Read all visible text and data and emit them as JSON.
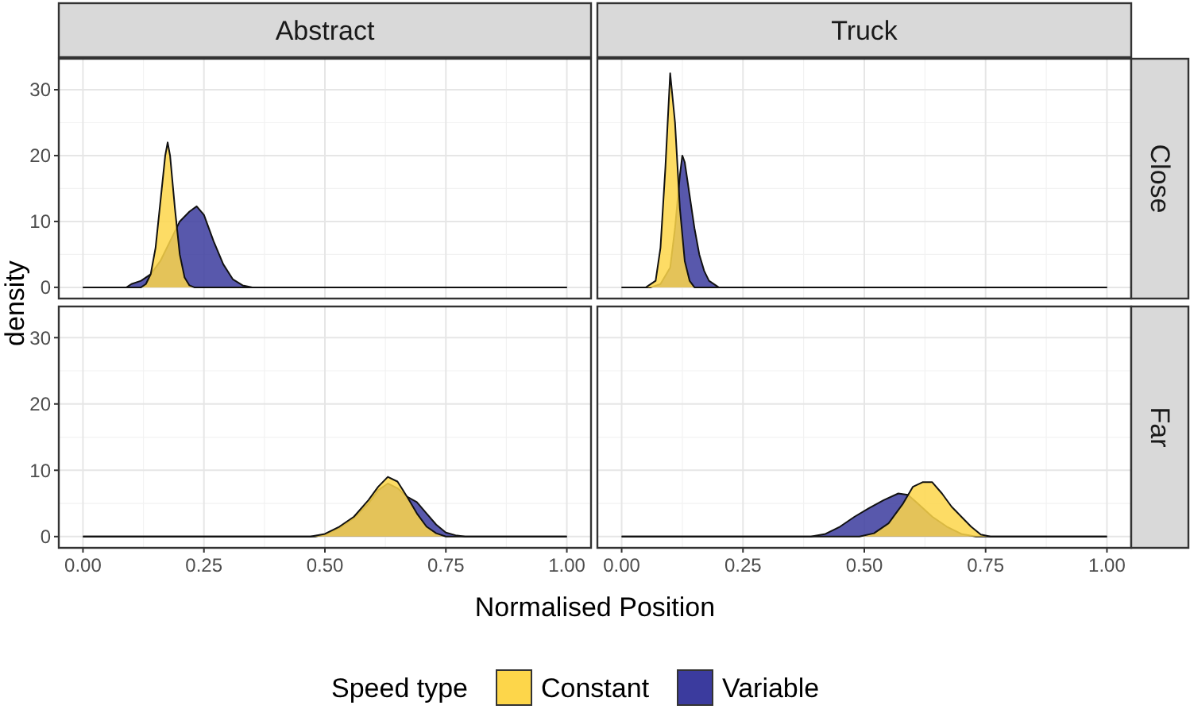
{
  "chart_data": [
    {
      "type": "area",
      "title": "Abstract",
      "ylabel": "density",
      "xlim": [
        -0.05,
        1.05
      ],
      "ylim": [
        -1.7,
        34.7
      ],
      "xticks": [
        0,
        0.25,
        0.5,
        0.75,
        1
      ],
      "yticks": [
        0,
        10,
        20,
        30
      ],
      "grid": true,
      "tick_labels": "y",
      "series": [
        {
          "color": "#3b3b9e",
          "x": [
            0,
            0.09,
            0.1,
            0.12,
            0.14,
            0.16,
            0.18,
            0.2,
            0.22,
            0.235,
            0.25,
            0.27,
            0.29,
            0.31,
            0.33,
            0.35,
            1
          ],
          "values": [
            0,
            0,
            0.5,
            1,
            2,
            4,
            7,
            10,
            11.5,
            12.3,
            11,
            7,
            3.5,
            1.2,
            0.3,
            0,
            0
          ]
        },
        {
          "color": "#fdd64a",
          "x": [
            0,
            0.12,
            0.13,
            0.14,
            0.15,
            0.16,
            0.17,
            0.175,
            0.18,
            0.19,
            0.2,
            0.21,
            0.22,
            0.23,
            1
          ],
          "values": [
            0,
            0,
            0.5,
            2,
            6,
            13,
            20,
            22,
            20,
            12,
            5,
            1.5,
            0.3,
            0,
            0
          ]
        }
      ]
    },
    {
      "type": "area",
      "title": "Truck",
      "y2label": "Close",
      "xlim": [
        -0.05,
        1.05
      ],
      "ylim": [
        -1.7,
        34.7
      ],
      "xticks": [
        0,
        0.25,
        0.5,
        0.75,
        1
      ],
      "yticks": [
        0,
        10,
        20,
        30
      ],
      "grid": true,
      "tick_labels": false,
      "series": [
        {
          "color": "#3b3b9e",
          "x": [
            0,
            0.06,
            0.08,
            0.1,
            0.11,
            0.12,
            0.125,
            0.13,
            0.14,
            0.15,
            0.16,
            0.17,
            0.18,
            0.2,
            1
          ],
          "values": [
            0,
            0,
            0.5,
            3,
            9,
            17,
            20,
            19,
            14,
            9,
            5,
            2.5,
            1,
            0,
            0
          ]
        },
        {
          "color": "#fdd64a",
          "x": [
            0,
            0.05,
            0.07,
            0.08,
            0.09,
            0.1,
            0.11,
            0.12,
            0.13,
            0.14,
            0.15,
            1
          ],
          "values": [
            0,
            0,
            1,
            6,
            18,
            32.5,
            25,
            12,
            4,
            1,
            0,
            0
          ]
        }
      ]
    },
    {
      "type": "area",
      "xlabel": "Normalised Position",
      "legend": "bottom",
      "legend_title": "Speed type",
      "xlim": [
        -0.05,
        1.05
      ],
      "ylim": [
        -1.7,
        34.7
      ],
      "xticks": [
        {
          "value": 0,
          "label": "0.00"
        },
        {
          "value": 0.25,
          "label": "0.25"
        },
        {
          "value": 0.5,
          "label": "0.50"
        },
        {
          "value": 0.75,
          "label": "0.75"
        },
        {
          "value": 1,
          "label": "1.00"
        }
      ],
      "yticks": [
        0,
        10,
        20,
        30
      ],
      "grid": true,
      "series": [
        {
          "name": "Variable",
          "color": "#3b3b9e",
          "x": [
            0,
            0.48,
            0.5,
            0.53,
            0.56,
            0.59,
            0.61,
            0.63,
            0.65,
            0.67,
            0.69,
            0.71,
            0.73,
            0.75,
            0.77,
            0.79,
            1
          ],
          "values": [
            0,
            0,
            0.3,
            1.3,
            2.8,
            5,
            7,
            8,
            7.3,
            6,
            5.2,
            3.5,
            1.8,
            0.6,
            0.2,
            0,
            0
          ]
        },
        {
          "name": "Constant",
          "color": "#fdd64a",
          "x": [
            0,
            0.47,
            0.5,
            0.53,
            0.56,
            0.59,
            0.61,
            0.63,
            0.65,
            0.67,
            0.69,
            0.71,
            0.73,
            0.75,
            1
          ],
          "values": [
            0,
            0,
            0.4,
            1.5,
            3,
            5.5,
            7.5,
            9,
            8.3,
            6,
            3.5,
            1.5,
            0.5,
            0,
            0
          ]
        }
      ]
    },
    {
      "type": "area",
      "y2label": "Far",
      "xlim": [
        -0.05,
        1.05
      ],
      "ylim": [
        -1.7,
        34.7
      ],
      "xticks": [
        {
          "value": 0,
          "label": "0.00"
        },
        {
          "value": 0.25,
          "label": "0.25"
        },
        {
          "value": 0.5,
          "label": "0.50"
        },
        {
          "value": 0.75,
          "label": "0.75"
        },
        {
          "value": 1,
          "label": "1.00"
        }
      ],
      "yticks": [
        0,
        10,
        20,
        30
      ],
      "grid": true,
      "tick_labels": "x",
      "series": [
        {
          "color": "#3b3b9e",
          "x": [
            0,
            0.39,
            0.42,
            0.45,
            0.48,
            0.51,
            0.54,
            0.57,
            0.59,
            0.61,
            0.64,
            0.67,
            0.7,
            0.73,
            1
          ],
          "values": [
            0,
            0,
            0.4,
            1.5,
            3,
            4.3,
            5.5,
            6.5,
            6.3,
            5,
            3,
            1.5,
            0.4,
            0,
            0
          ]
        },
        {
          "color": "#fdd64a",
          "x": [
            0,
            0.49,
            0.52,
            0.55,
            0.58,
            0.6,
            0.62,
            0.64,
            0.66,
            0.68,
            0.7,
            0.72,
            0.74,
            0.76,
            1
          ],
          "values": [
            0,
            0,
            0.5,
            2,
            5,
            7.5,
            8.2,
            8.2,
            6.5,
            4.5,
            3,
            1.5,
            0.3,
            0,
            0
          ]
        }
      ]
    }
  ]
}
